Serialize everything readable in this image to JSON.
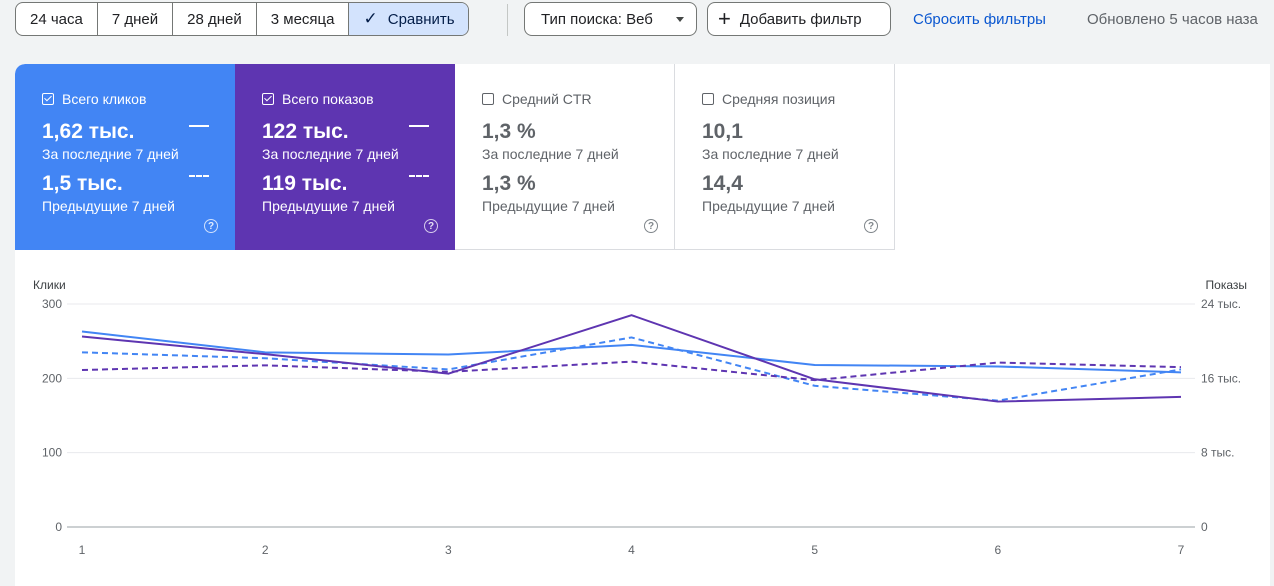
{
  "toolbar": {
    "date_ranges": [
      "24 часа",
      "7 дней",
      "28 дней",
      "3 месяца"
    ],
    "compare_label": "Сравнить",
    "search_type_label": "Тип поиска: Веб",
    "add_filter_label": "Добавить фильтр",
    "reset_filters_label": "Сбросить фильтры",
    "updated_text": "Обновлено 5 часов наза"
  },
  "metrics": {
    "clicks": {
      "label": "Всего кликов",
      "value": "1,62 тыс.",
      "period": "За последние 7 дней",
      "prev_value": "1,5 тыс.",
      "prev_period": "Предыдущие 7 дней",
      "checked": true,
      "color": "#4285f4"
    },
    "impressions": {
      "label": "Всего показов",
      "value": "122 тыс.",
      "period": "За последние 7 дней",
      "prev_value": "119 тыс.",
      "prev_period": "Предыдущие 7 дней",
      "checked": true,
      "color": "#5e35b1"
    },
    "ctr": {
      "label": "Средний CTR",
      "value": "1,3 %",
      "period": "За последние 7 дней",
      "prev_value": "1,3 %",
      "prev_period": "Предыдущие 7 дней",
      "checked": false
    },
    "position": {
      "label": "Средняя позиция",
      "value": "10,1",
      "period": "За последние 7 дней",
      "prev_value": "14,4",
      "prev_period": "Предыдущие 7 дней",
      "checked": false
    }
  },
  "help_glyph": "?",
  "chart_data": {
    "type": "line",
    "x": [
      1,
      2,
      3,
      4,
      5,
      6,
      7
    ],
    "ylabel_left": "Клики",
    "ylabel_right": "Показы",
    "ylim_left": [
      0,
      300
    ],
    "ylim_right": [
      0,
      24000
    ],
    "yticks_left": [
      "0",
      "100",
      "200",
      "300"
    ],
    "yticks_right": [
      "0",
      "8 тыс.",
      "16 тыс.",
      "24 тыс."
    ],
    "grid": true,
    "series": [
      {
        "axis": "left",
        "style": "solid",
        "color": "#4285f4",
        "values": [
          263,
          235,
          232,
          245,
          218,
          216,
          208
        ]
      },
      {
        "axis": "left",
        "style": "dashed",
        "color": "#4285f4",
        "values": [
          235,
          227,
          212,
          255,
          190,
          170,
          212
        ]
      },
      {
        "axis": "right",
        "style": "solid",
        "color": "#5e35b1",
        "values": [
          20500,
          18600,
          16500,
          22800,
          15900,
          13500,
          14000
        ]
      },
      {
        "axis": "right",
        "style": "dashed",
        "color": "#5e35b1",
        "values": [
          16900,
          17400,
          16700,
          17800,
          15800,
          17700,
          17200
        ]
      }
    ]
  }
}
